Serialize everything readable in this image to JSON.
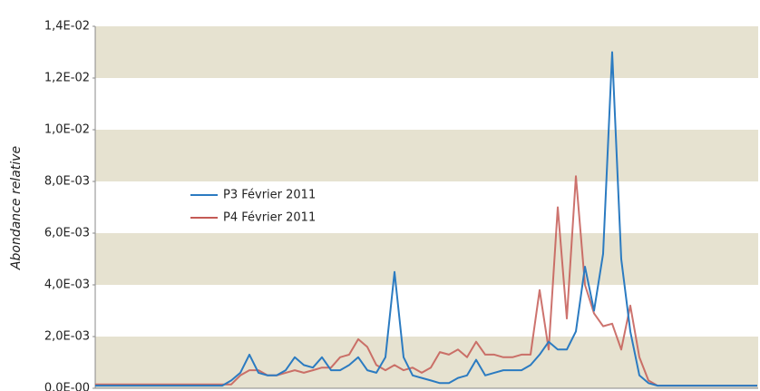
{
  "chart_data": {
    "type": "line",
    "y_label": "Abondance relative",
    "ylim": [
      0,
      0.014
    ],
    "yticks": [
      {
        "value": 0,
        "label": "0.0E-00"
      },
      {
        "value": 0.002,
        "label": "2,0E-03"
      },
      {
        "value": 0.004,
        "label": "4,0E-03"
      },
      {
        "value": 0.006,
        "label": "6,0E-03"
      },
      {
        "value": 0.008,
        "label": "8,0E-03"
      },
      {
        "value": 0.01,
        "label": "1,0E-02"
      },
      {
        "value": 0.012,
        "label": "1,2E-02"
      },
      {
        "value": 0.014,
        "label": "1,4E-02"
      }
    ],
    "band_color": "#e6e2d0",
    "series": [
      {
        "name": "P3 Février 2011",
        "color": "#2b7bc1",
        "values": [
          0.0001,
          0.0001,
          0.0001,
          0.0001,
          0.0001,
          0.0001,
          0.0001,
          0.0001,
          0.0001,
          0.0001,
          0.0001,
          0.0001,
          0.0001,
          0.0001,
          0.0001,
          0.0003,
          0.0006,
          0.0013,
          0.0006,
          0.0005,
          0.0005,
          0.0007,
          0.0012,
          0.0009,
          0.0008,
          0.0012,
          0.0007,
          0.0007,
          0.0009,
          0.0012,
          0.0007,
          0.0006,
          0.0012,
          0.0045,
          0.0012,
          0.0005,
          0.0004,
          0.0003,
          0.0002,
          0.0002,
          0.0004,
          0.0005,
          0.0011,
          0.0005,
          0.0006,
          0.0007,
          0.0007,
          0.0007,
          0.0009,
          0.0013,
          0.0018,
          0.0015,
          0.0015,
          0.0022,
          0.0047,
          0.003,
          0.0052,
          0.013,
          0.005,
          0.0022,
          0.0005,
          0.0002,
          0.0001,
          0.0001,
          0.0001,
          0.0001,
          0.0001,
          0.0001,
          0.0001,
          0.0001,
          0.0001,
          0.0001,
          0.0001,
          0.0001
        ]
      },
      {
        "name": "P4 Février 2011",
        "color": "#c45a55",
        "values": [
          0.00015,
          0.00015,
          0.00015,
          0.00015,
          0.00015,
          0.00015,
          0.00015,
          0.00015,
          0.00015,
          0.00015,
          0.00015,
          0.00015,
          0.00015,
          0.00015,
          0.00015,
          0.00015,
          0.0005,
          0.0007,
          0.0007,
          0.0005,
          0.0005,
          0.0006,
          0.0007,
          0.0006,
          0.0007,
          0.0008,
          0.0008,
          0.0012,
          0.0013,
          0.0019,
          0.0016,
          0.0009,
          0.0007,
          0.0009,
          0.0007,
          0.0008,
          0.0006,
          0.0008,
          0.0014,
          0.0013,
          0.0015,
          0.0012,
          0.0018,
          0.0013,
          0.0013,
          0.0012,
          0.0012,
          0.0013,
          0.0013,
          0.0038,
          0.0015,
          0.007,
          0.0027,
          0.0082,
          0.004,
          0.0029,
          0.0024,
          0.0025,
          0.0015,
          0.0032,
          0.0012,
          0.0003,
          0.0001,
          0.0001,
          0.0001,
          0.0001,
          0.0001,
          0.0001,
          0.0001,
          0.0001,
          0.0001,
          0.0001,
          0.0001,
          0.0001
        ]
      }
    ]
  }
}
